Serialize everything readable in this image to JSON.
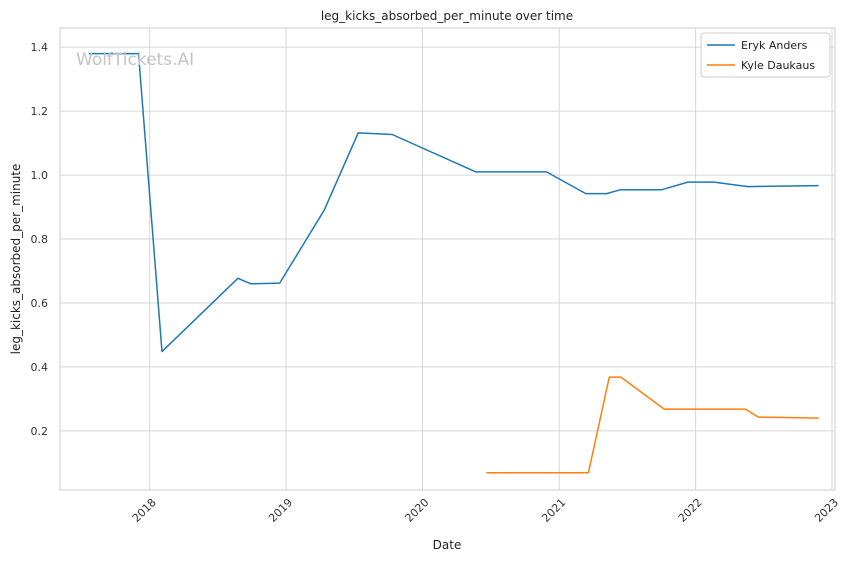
{
  "chart_data": {
    "type": "line",
    "title": "leg_kicks_absorbed_per_minute over time",
    "xlabel": "Date",
    "ylabel": "leg_kicks_absorbed_per_minute",
    "watermark": "WolfTickets.AI",
    "x_ticks": [
      "2018",
      "2019",
      "2020",
      "2021",
      "2022",
      "2023"
    ],
    "y_ticks": [
      "0.2",
      "0.4",
      "0.6",
      "0.8",
      "1.0",
      "1.2",
      "1.4"
    ],
    "xlim": [
      "2017-05-06",
      "2023-01-09"
    ],
    "ylim": [
      0.015,
      1.46
    ],
    "grid": true,
    "legend_position": "top-right",
    "series": [
      {
        "name": "Eryk Anders",
        "color": "#1f77b4",
        "points": [
          [
            "2017-07-22",
            1.38
          ],
          [
            "2017-12-02",
            1.38
          ],
          [
            "2018-02-03",
            0.448
          ],
          [
            "2018-08-25",
            0.677
          ],
          [
            "2018-09-29",
            0.66
          ],
          [
            "2018-12-15",
            0.662
          ],
          [
            "2019-04-13",
            0.89
          ],
          [
            "2019-07-13",
            1.132
          ],
          [
            "2019-10-12",
            1.127
          ],
          [
            "2020-05-23",
            1.01
          ],
          [
            "2020-11-28",
            1.01
          ],
          [
            "2021-03-13",
            0.942
          ],
          [
            "2021-05-08",
            0.942
          ],
          [
            "2021-06-13",
            0.954
          ],
          [
            "2021-10-02",
            0.954
          ],
          [
            "2021-12-11",
            0.978
          ],
          [
            "2022-02-19",
            0.978
          ],
          [
            "2022-05-21",
            0.964
          ],
          [
            "2022-11-26",
            0.967
          ]
        ]
      },
      {
        "name": "Kyle Daukaus",
        "color": "#ff7f0e",
        "points": [
          [
            "2020-06-20",
            0.069
          ],
          [
            "2021-03-20",
            0.069
          ],
          [
            "2021-05-15",
            0.368
          ],
          [
            "2021-06-15",
            0.368
          ],
          [
            "2021-10-09",
            0.268
          ],
          [
            "2022-05-14",
            0.268
          ],
          [
            "2022-06-18",
            0.243
          ],
          [
            "2022-11-26",
            0.24
          ]
        ]
      }
    ]
  }
}
